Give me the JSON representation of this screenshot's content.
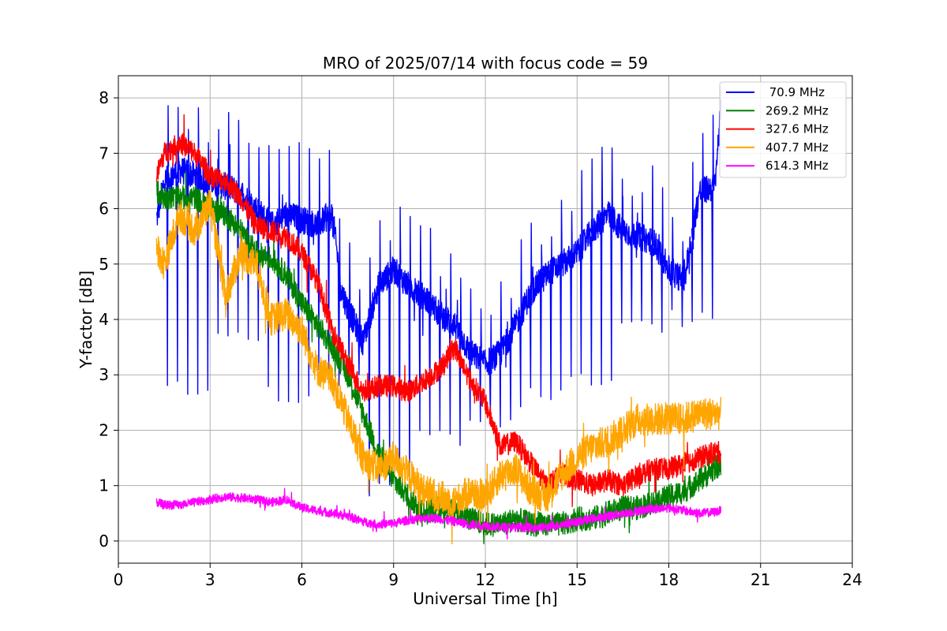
{
  "chart_data": {
    "type": "line",
    "title": "MRO of 2025/07/14 with focus code = 59",
    "xlabel": "Universal Time [h]",
    "ylabel": "Y-factor [dB]",
    "xlim": [
      0,
      24
    ],
    "ylim": [
      -0.4,
      8.4
    ],
    "xticks": [
      0,
      3,
      6,
      9,
      12,
      15,
      18,
      21,
      24
    ],
    "yticks": [
      0,
      1,
      2,
      3,
      4,
      5,
      6,
      7,
      8
    ],
    "grid": true,
    "legend_position": "top-right",
    "series": [
      {
        "name": " 70.9 MHz",
        "color": "#0000ff",
        "noise": 0.25,
        "dips": {
          "every": 0.33,
          "depth_to": [
            2.8,
            3.8,
            2.6,
            2.9,
            1.0,
            1.8,
            2.2,
            2.6,
            2.9,
            3.8,
            4.0
          ]
        },
        "x": [
          1.25,
          1.5,
          2.0,
          2.5,
          3.0,
          3.5,
          4.0,
          4.5,
          5.0,
          5.5,
          6.0,
          6.5,
          7.0,
          7.3,
          7.5,
          8.0,
          8.5,
          9.0,
          9.5,
          10.0,
          10.5,
          11.0,
          11.5,
          12.0,
          12.5,
          13.0,
          13.5,
          14.0,
          14.5,
          15.0,
          15.5,
          16.0,
          16.5,
          17.0,
          17.5,
          18.0,
          18.5,
          19.0,
          19.5,
          19.7
        ],
        "y": [
          5.8,
          6.5,
          6.7,
          6.6,
          6.5,
          6.4,
          6.3,
          6.0,
          5.7,
          5.9,
          5.8,
          5.7,
          5.9,
          4.5,
          4.2,
          3.6,
          4.6,
          4.9,
          4.6,
          4.4,
          4.1,
          3.9,
          3.4,
          3.2,
          3.4,
          3.9,
          4.5,
          4.8,
          5.0,
          5.2,
          5.6,
          5.9,
          5.6,
          5.5,
          5.4,
          4.9,
          4.7,
          6.3,
          6.4,
          7.8
        ]
      },
      {
        "name": "269.2 MHz",
        "color": "#008000",
        "noise": 0.22,
        "x": [
          1.25,
          1.5,
          2.0,
          2.5,
          3.0,
          3.5,
          4.0,
          4.5,
          5.0,
          5.5,
          6.0,
          6.5,
          7.0,
          7.5,
          8.0,
          8.5,
          9.0,
          9.5,
          10.0,
          10.5,
          11.0,
          11.5,
          12.0,
          12.5,
          13.0,
          13.5,
          14.0,
          14.5,
          15.0,
          15.5,
          16.0,
          16.5,
          17.0,
          17.5,
          18.0,
          18.5,
          19.0,
          19.5,
          19.7
        ],
        "y": [
          6.3,
          6.2,
          6.2,
          6.2,
          6.0,
          5.9,
          5.6,
          5.2,
          5.1,
          4.8,
          4.3,
          3.9,
          3.5,
          3.0,
          2.3,
          1.6,
          1.1,
          0.8,
          0.5,
          0.6,
          0.6,
          0.4,
          0.3,
          0.3,
          0.4,
          0.3,
          0.3,
          0.3,
          0.4,
          0.4,
          0.5,
          0.6,
          0.6,
          0.7,
          0.8,
          0.9,
          1.1,
          1.3,
          1.4
        ]
      },
      {
        "name": "327.6 MHz",
        "color": "#ff0000",
        "noise": 0.2,
        "x": [
          1.25,
          1.5,
          2.0,
          2.5,
          3.0,
          3.5,
          4.0,
          4.5,
          5.0,
          5.5,
          6.0,
          6.5,
          7.0,
          7.5,
          8.0,
          8.5,
          9.0,
          9.5,
          10.0,
          10.5,
          11.0,
          11.5,
          12.0,
          12.5,
          13.0,
          13.5,
          14.0,
          14.5,
          15.0,
          15.5,
          16.0,
          16.5,
          17.0,
          17.5,
          18.0,
          18.5,
          19.0,
          19.5,
          19.7
        ],
        "y": [
          6.6,
          7.0,
          7.2,
          7.0,
          6.6,
          6.5,
          6.2,
          5.7,
          5.6,
          5.5,
          5.2,
          4.7,
          3.8,
          3.2,
          2.7,
          2.8,
          2.8,
          2.7,
          2.9,
          3.1,
          3.5,
          2.9,
          2.5,
          1.7,
          1.8,
          1.4,
          1.0,
          1.2,
          1.1,
          1.0,
          1.1,
          1.0,
          1.2,
          1.3,
          1.3,
          1.4,
          1.5,
          1.6,
          1.6
        ]
      },
      {
        "name": "407.7 MHz",
        "color": "#ffa500",
        "noise": 0.3,
        "x": [
          1.25,
          1.5,
          2.0,
          2.5,
          3.0,
          3.5,
          4.0,
          4.5,
          5.0,
          5.5,
          6.0,
          6.5,
          7.0,
          7.5,
          8.0,
          8.5,
          9.0,
          9.5,
          10.0,
          10.5,
          11.0,
          11.5,
          12.0,
          12.5,
          13.0,
          13.5,
          14.0,
          14.5,
          15.0,
          15.5,
          16.0,
          16.5,
          17.0,
          17.5,
          18.0,
          18.5,
          19.0,
          19.5,
          19.7
        ],
        "y": [
          5.3,
          5.0,
          5.9,
          5.6,
          6.1,
          4.4,
          5.2,
          5.0,
          4.0,
          4.1,
          3.8,
          3.1,
          2.9,
          2.2,
          1.5,
          1.3,
          1.5,
          1.2,
          0.9,
          0.8,
          0.7,
          0.9,
          0.8,
          1.2,
          1.3,
          0.9,
          0.8,
          1.2,
          1.5,
          1.7,
          1.8,
          2.0,
          2.2,
          2.2,
          2.2,
          2.2,
          2.3,
          2.3,
          2.3
        ]
      },
      {
        "name": "614.3 MHz",
        "color": "#ff00ff",
        "noise": 0.08,
        "x": [
          1.25,
          1.5,
          2.0,
          2.5,
          3.0,
          3.5,
          4.0,
          4.5,
          5.0,
          5.5,
          6.0,
          6.5,
          7.0,
          7.5,
          8.0,
          8.5,
          9.0,
          9.5,
          10.0,
          10.5,
          11.0,
          11.5,
          12.0,
          12.5,
          13.0,
          13.5,
          14.0,
          14.5,
          15.0,
          15.5,
          16.0,
          16.5,
          17.0,
          17.5,
          18.0,
          18.5,
          19.0,
          19.5,
          19.7
        ],
        "y": [
          0.7,
          0.65,
          0.65,
          0.7,
          0.75,
          0.8,
          0.78,
          0.75,
          0.7,
          0.75,
          0.6,
          0.55,
          0.5,
          0.45,
          0.35,
          0.3,
          0.32,
          0.38,
          0.42,
          0.4,
          0.35,
          0.3,
          0.28,
          0.25,
          0.25,
          0.24,
          0.25,
          0.3,
          0.35,
          0.4,
          0.45,
          0.5,
          0.55,
          0.58,
          0.6,
          0.55,
          0.5,
          0.52,
          0.55
        ]
      }
    ]
  }
}
